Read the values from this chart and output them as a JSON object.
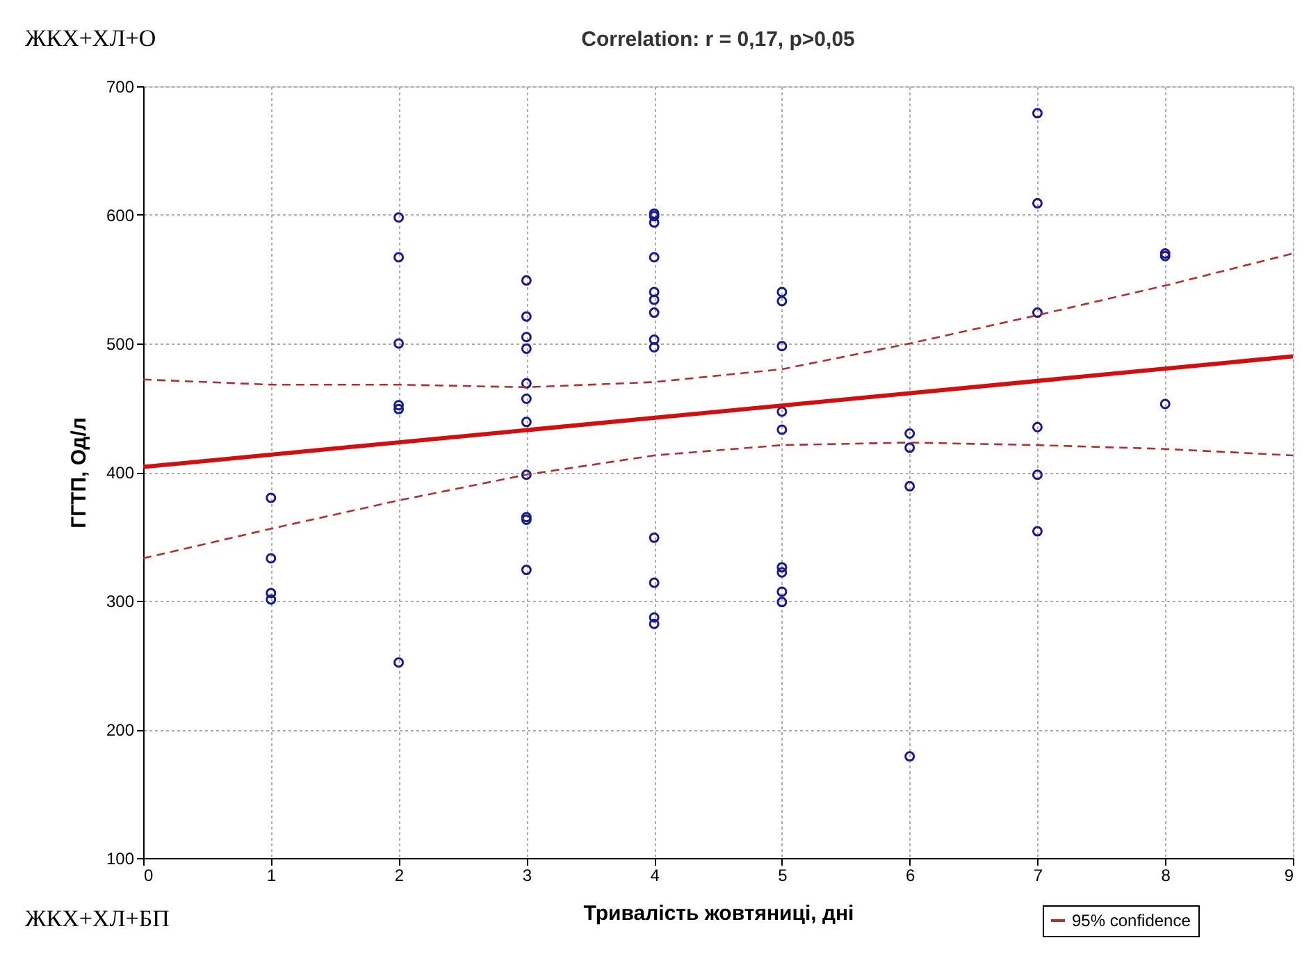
{
  "chart_data": {
    "type": "scatter",
    "title": "Correlation: r = 0,17, p>0,05",
    "xlabel": "Тривалість жовтяниці, дні",
    "ylabel": "ГГТП, Од/л",
    "annotations": [
      "ЖКХ+ХЛ+О",
      "ЖКХ+ХЛ+БП"
    ],
    "series": [
      {
        "color": "#1a1a8c",
        "marker": "circle",
        "x": [
          1,
          1,
          1,
          1,
          2,
          2,
          2,
          2,
          2,
          2,
          3,
          3,
          3,
          3,
          3,
          3,
          3,
          3,
          3,
          3,
          3,
          4,
          4,
          4,
          4,
          4,
          4,
          4,
          4,
          4,
          4,
          4,
          4,
          4,
          5,
          5,
          5,
          5,
          5,
          5,
          5,
          5,
          5,
          6,
          6,
          6,
          6,
          7,
          7,
          7,
          7,
          7,
          7,
          8,
          8,
          8
        ],
        "values": [
          380,
          333,
          306,
          301,
          598,
          567,
          500,
          452,
          449,
          252,
          549,
          521,
          505,
          496,
          469,
          457,
          439,
          398,
          365,
          363,
          324,
          601,
          599,
          594,
          567,
          540,
          534,
          524,
          503,
          497,
          349,
          314,
          287,
          282,
          540,
          533,
          498,
          447,
          433,
          326,
          322,
          307,
          299,
          430,
          419,
          389,
          179,
          679,
          609,
          524,
          435,
          398,
          354,
          570,
          568,
          453
        ]
      },
      {
        "type": "line",
        "color": "#d01010",
        "line_style": "solid",
        "x": [
          0,
          9
        ],
        "values": [
          404,
          490
        ]
      },
      {
        "type": "line",
        "name": "95% confidence",
        "color": "#b03030",
        "line_style": "dashed",
        "x": [
          0,
          1,
          2,
          3,
          4,
          5,
          6,
          7,
          8,
          9
        ],
        "values": [
          472,
          468,
          468,
          466,
          470,
          480,
          500,
          522,
          545,
          570
        ]
      },
      {
        "type": "line",
        "color": "#b03030",
        "line_style": "dashed",
        "x": [
          0,
          1,
          2,
          3,
          4,
          5,
          6,
          7,
          8,
          9
        ],
        "values": [
          333,
          356,
          378,
          398,
          413,
          421,
          423,
          421,
          418,
          413
        ]
      }
    ],
    "xlim": [
      0,
      9
    ],
    "xticks": [
      0,
      1,
      2,
      3,
      4,
      5,
      6,
      7,
      8,
      9
    ],
    "ylim": [
      100,
      700
    ],
    "yticks": [
      100,
      200,
      300,
      400,
      500,
      600,
      700
    ],
    "grid": true,
    "legend": "bottom right"
  }
}
